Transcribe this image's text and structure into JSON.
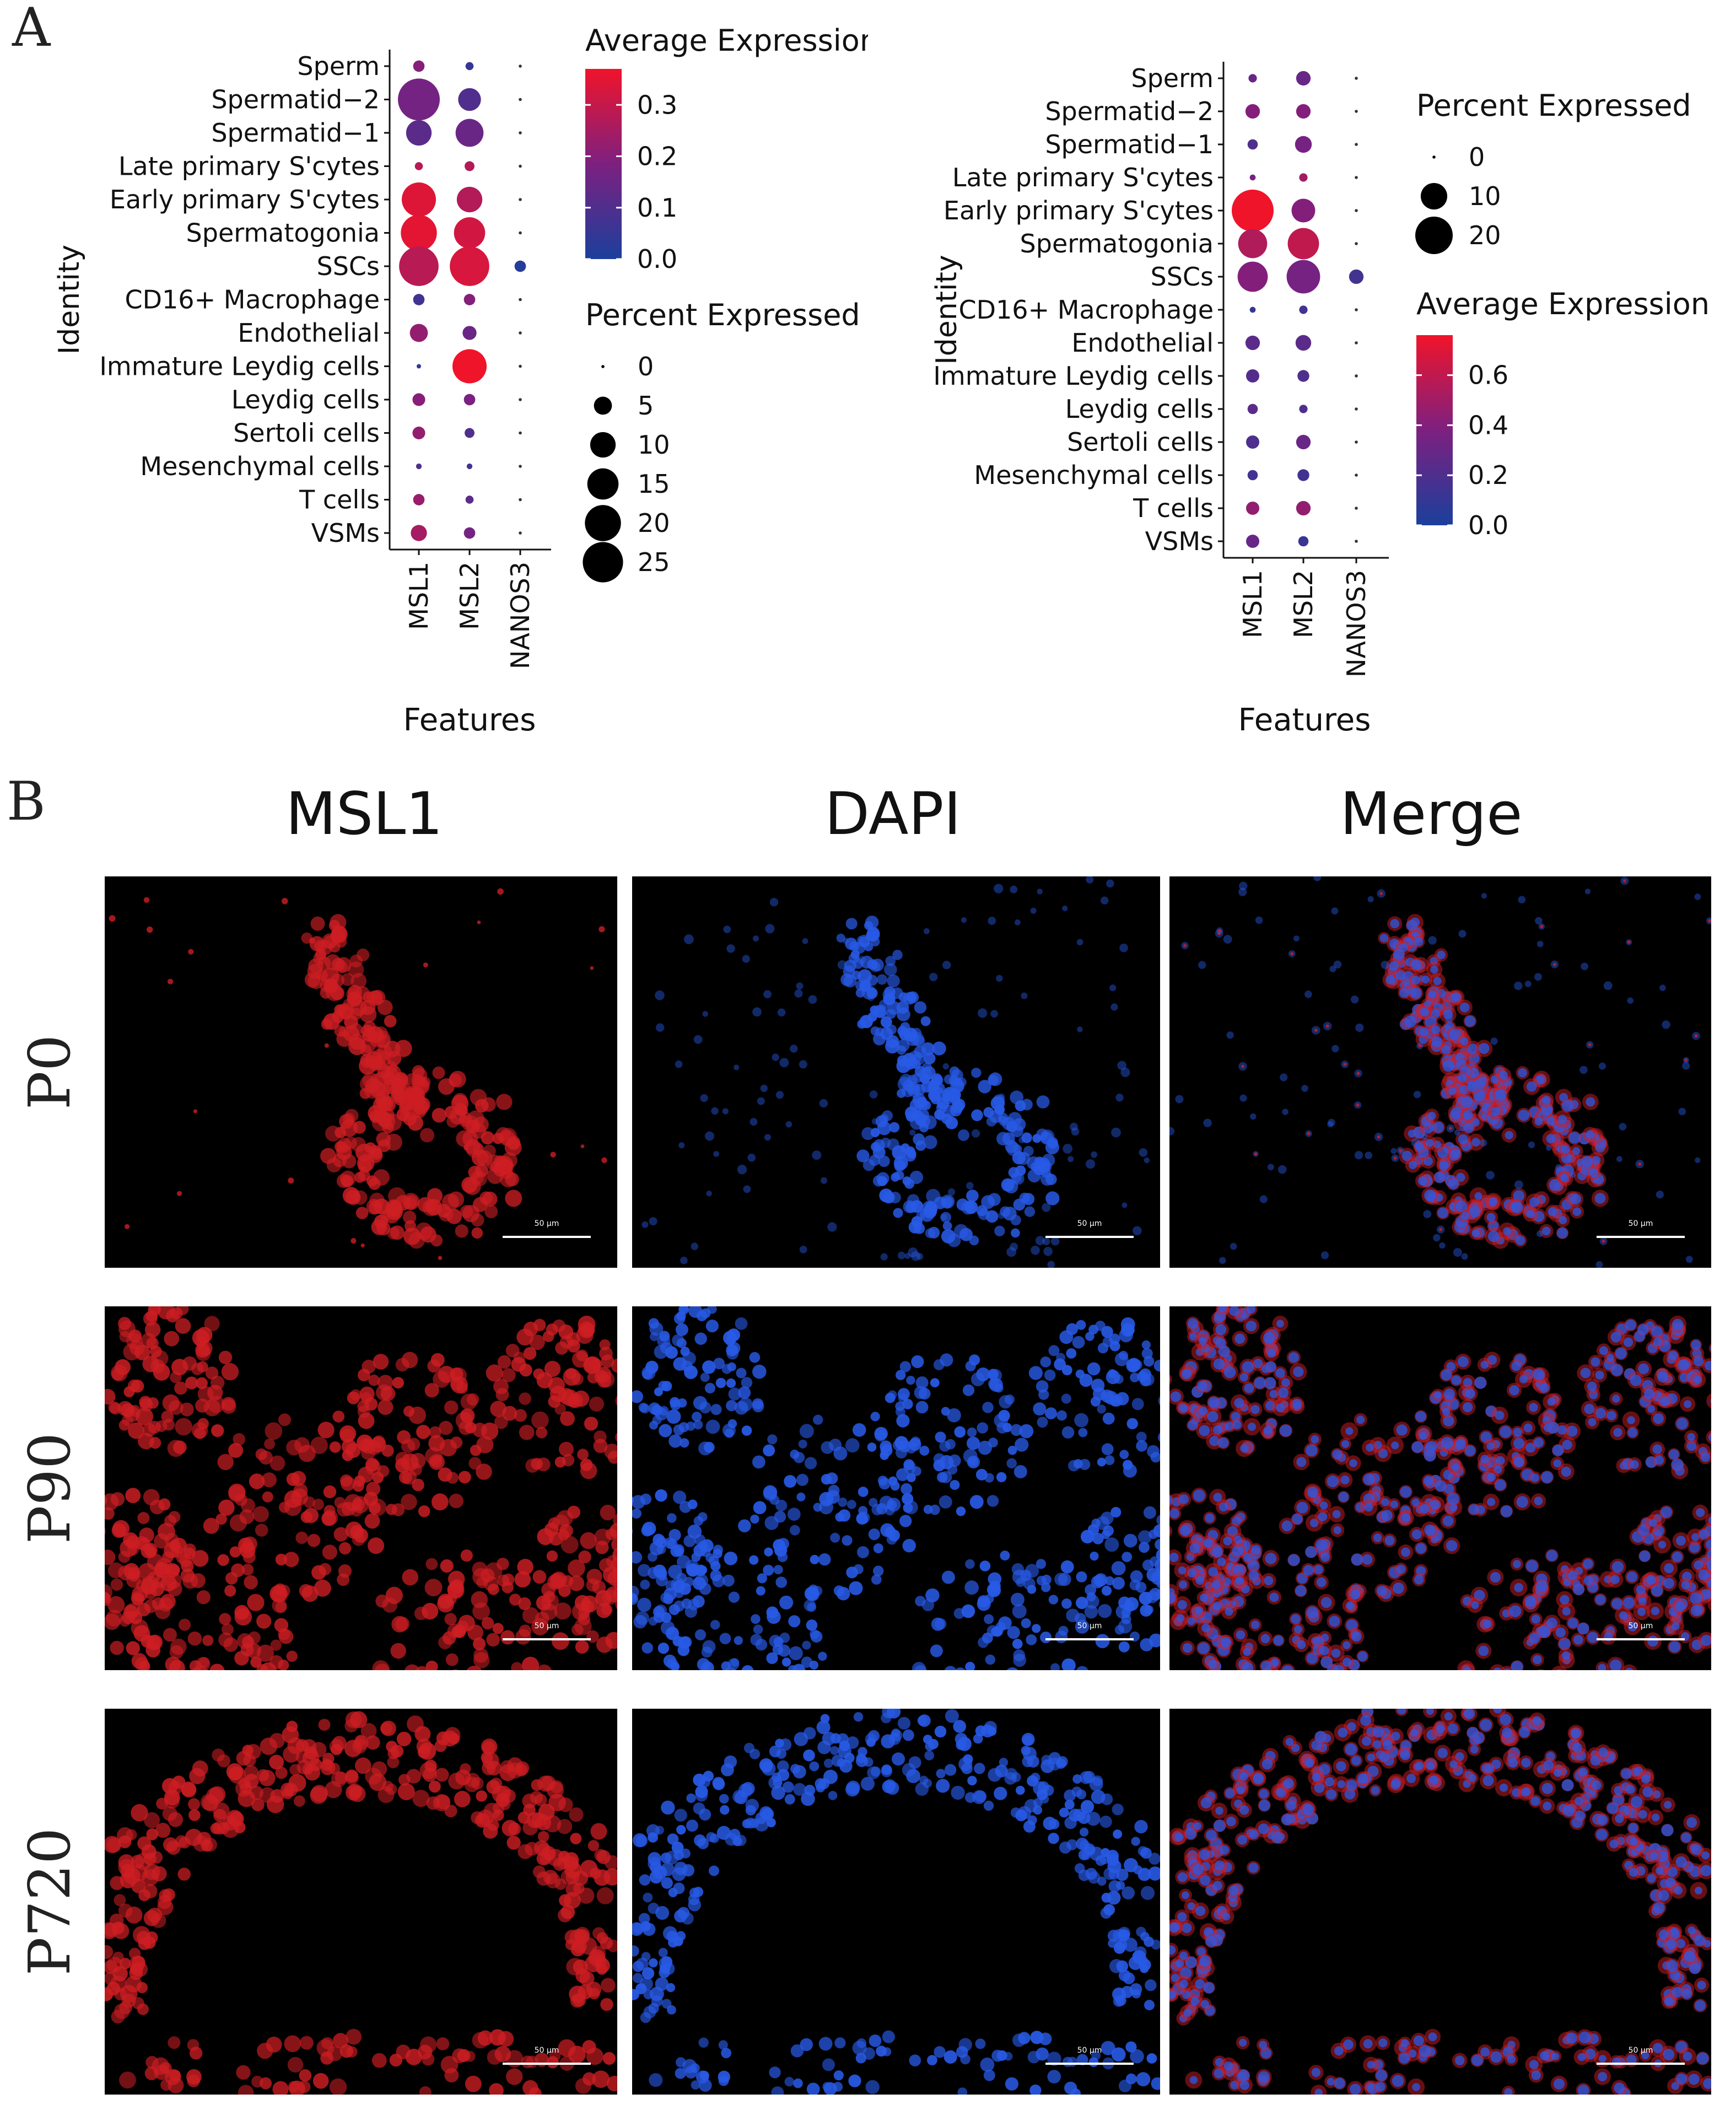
{
  "panels": {
    "a": "A",
    "b": "B"
  },
  "colors": {
    "low": "#1b3f9c",
    "mid": "#7d2080",
    "high": "#f0142a"
  },
  "chart_data": [
    {
      "type": "dot",
      "title": "",
      "xlabel": "Features",
      "ylabel": "Identity",
      "features": [
        "MSL1",
        "MSL2",
        "NANOS3"
      ],
      "identities": [
        "Sperm",
        "Spermatid−2",
        "Spermatid−1",
        "Late primary S'cytes",
        "Early primary S'cytes",
        "Spermatogonia",
        "SSCs",
        "CD16+ Macrophage",
        "Endothelial",
        "Immature Leydig cells",
        "Leydig cells",
        "Sertoli cells",
        "Mesenchymal cells",
        "T cells",
        "VSMs"
      ],
      "pct_expressed": [
        [
          2,
          1,
          0
        ],
        [
          27,
          8,
          0
        ],
        [
          10,
          12,
          0
        ],
        [
          1,
          1.5,
          0
        ],
        [
          18,
          10,
          0
        ],
        [
          20,
          15,
          0
        ],
        [
          24,
          24,
          2
        ],
        [
          2,
          2,
          0
        ],
        [
          5,
          3,
          0
        ],
        [
          0.3,
          18,
          0
        ],
        [
          2.5,
          2,
          0
        ],
        [
          2.5,
          1.5,
          0
        ],
        [
          0.5,
          0.5,
          0
        ],
        [
          2,
          1,
          0
        ],
        [
          4,
          2,
          0
        ]
      ],
      "avg_expression": [
        [
          0.2,
          0.05,
          0.0
        ],
        [
          0.17,
          0.1,
          0.0
        ],
        [
          0.12,
          0.15,
          0.0
        ],
        [
          0.28,
          0.27,
          0.0
        ],
        [
          0.34,
          0.27,
          0.0
        ],
        [
          0.35,
          0.32,
          0.0
        ],
        [
          0.28,
          0.33,
          0.02
        ],
        [
          0.07,
          0.2,
          0.0
        ],
        [
          0.22,
          0.15,
          0.0
        ],
        [
          0.05,
          0.37,
          0.0
        ],
        [
          0.2,
          0.18,
          0.0
        ],
        [
          0.22,
          0.1,
          0.0
        ],
        [
          0.1,
          0.08,
          0.0
        ],
        [
          0.23,
          0.12,
          0.0
        ],
        [
          0.25,
          0.17,
          0.0
        ]
      ],
      "legend_color": {
        "title": "Average Expression",
        "range": [
          0.0,
          0.37
        ],
        "ticks": [
          0.0,
          0.1,
          0.2,
          0.3
        ],
        "tick_labels": [
          "0.0",
          "0.1",
          "0.2",
          "0.3"
        ]
      },
      "legend_size": {
        "title": "Percent Expressed",
        "values": [
          0,
          5,
          10,
          15,
          20,
          25
        ],
        "labels": [
          "0",
          "5",
          "10",
          "15",
          "20",
          "25"
        ]
      },
      "size_max_pct": 27
    },
    {
      "type": "dot",
      "title": "",
      "xlabel": "Features",
      "ylabel": "Identity",
      "features": [
        "MSL1",
        "MSL2",
        "NANOS3"
      ],
      "identities": [
        "Sperm",
        "Spermatid−2",
        "Spermatid−1",
        "Late primary S'cytes",
        "Early primary S'cytes",
        "Spermatogonia",
        "SSCs",
        "CD16+ Macrophage",
        "Endothelial",
        "Immature Leydig cells",
        "Leydig cells",
        "Sertoli cells",
        "Mesenchymal cells",
        "T cells",
        "VSMs"
      ],
      "pct_expressed": [
        [
          1,
          3,
          0
        ],
        [
          3,
          3,
          0
        ],
        [
          1.5,
          4,
          0
        ],
        [
          0.5,
          1,
          0
        ],
        [
          25,
          8,
          0
        ],
        [
          12,
          14,
          0
        ],
        [
          13,
          16,
          3
        ],
        [
          0.5,
          1,
          0
        ],
        [
          3,
          3.5,
          0
        ],
        [
          2.5,
          2,
          0
        ],
        [
          1.5,
          1,
          0
        ],
        [
          2.5,
          3,
          0
        ],
        [
          1.5,
          2,
          0
        ],
        [
          2.5,
          3,
          0
        ],
        [
          2.5,
          1.5,
          0
        ]
      ],
      "avg_expression": [
        [
          0.3,
          0.3,
          0.0
        ],
        [
          0.4,
          0.4,
          0.0
        ],
        [
          0.2,
          0.35,
          0.0
        ],
        [
          0.35,
          0.5,
          0.0
        ],
        [
          0.76,
          0.4,
          0.0
        ],
        [
          0.55,
          0.6,
          0.0
        ],
        [
          0.4,
          0.35,
          0.15
        ],
        [
          0.1,
          0.15,
          0.0
        ],
        [
          0.25,
          0.25,
          0.0
        ],
        [
          0.22,
          0.2,
          0.0
        ],
        [
          0.25,
          0.2,
          0.0
        ],
        [
          0.2,
          0.3,
          0.0
        ],
        [
          0.15,
          0.15,
          0.0
        ],
        [
          0.45,
          0.45,
          0.0
        ],
        [
          0.3,
          0.12,
          0.0
        ]
      ],
      "legend_color": {
        "title": "Average Expression",
        "range": [
          0.0,
          0.76
        ],
        "ticks": [
          0.0,
          0.2,
          0.4,
          0.6
        ],
        "tick_labels": [
          "0.0",
          "0.2",
          "0.4",
          "0.6"
        ]
      },
      "legend_size": {
        "title": "Percent Expressed",
        "values": [
          0,
          10,
          20
        ],
        "labels": [
          "0",
          "10",
          "20"
        ]
      },
      "size_max_pct": 25
    }
  ],
  "microscopy": {
    "columns": [
      "MSL1",
      "DAPI",
      "Merge"
    ],
    "rows": [
      "P0",
      "P90",
      "P720"
    ],
    "scale_label": "50 μm"
  }
}
